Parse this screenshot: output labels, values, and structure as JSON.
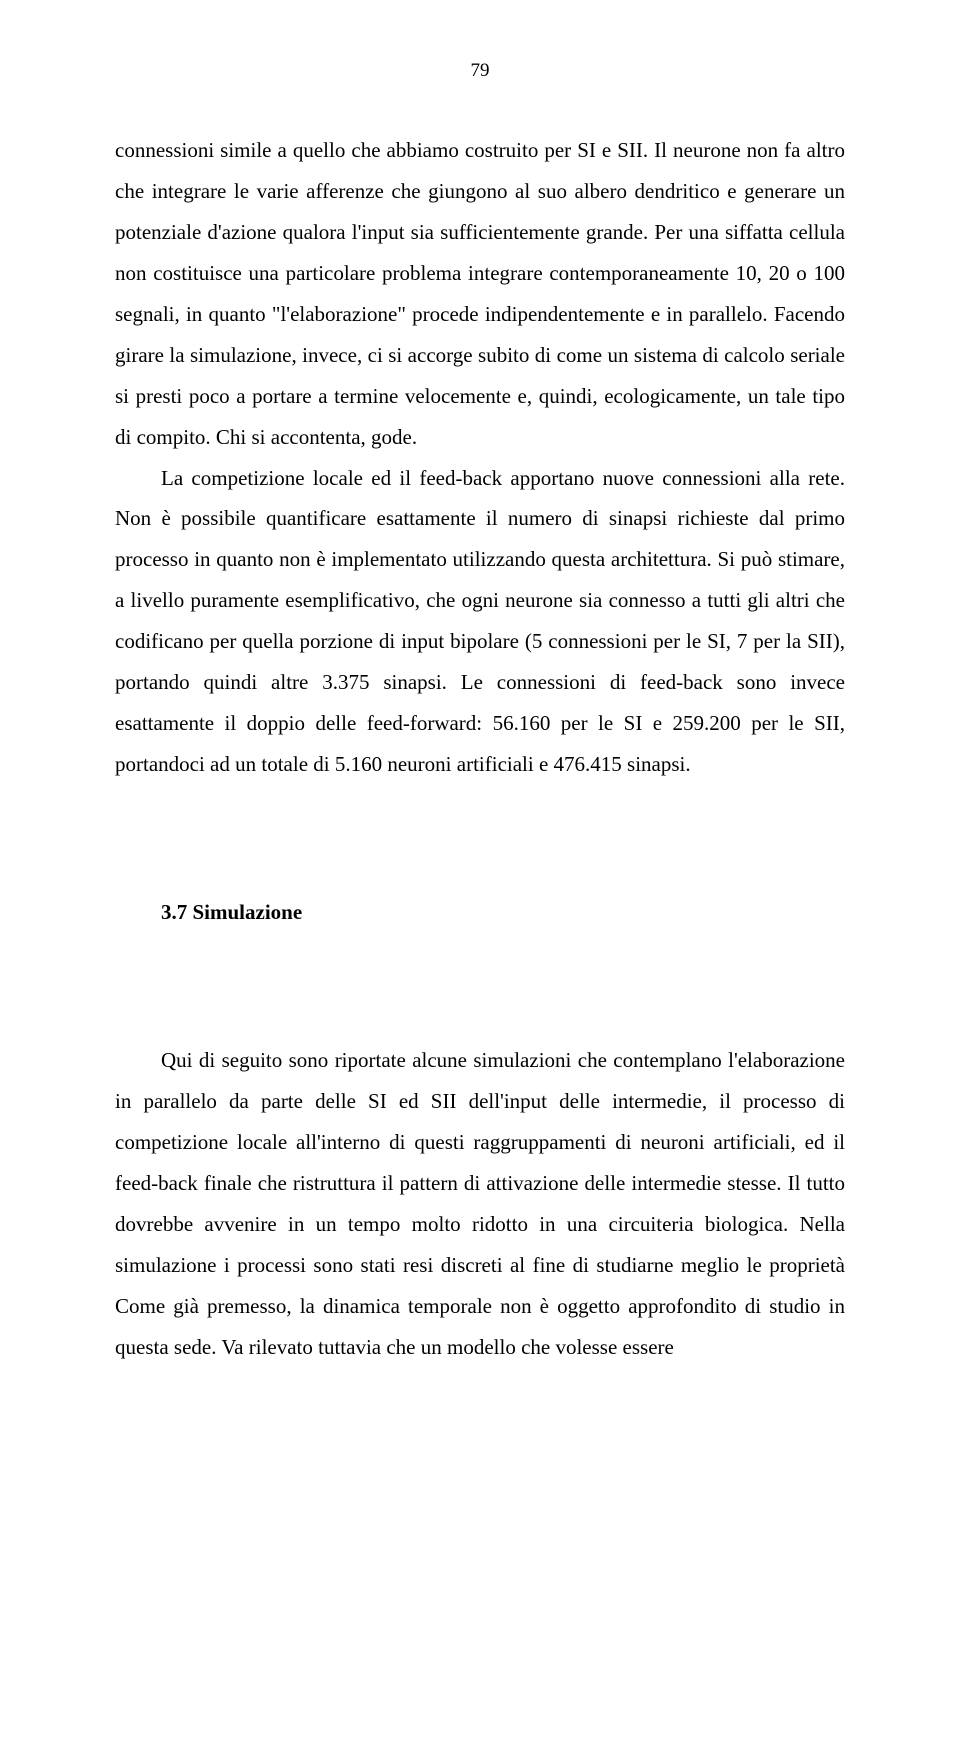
{
  "page_number": "79",
  "paragraphs": {
    "p1": "connessioni simile a quello che abbiamo costruito per SI e SII. Il neurone non fa altro che integrare le varie afferenze che giungono al suo albero dendritico e generare un potenziale d'azione qualora l'input sia sufficientemente grande. Per una siffatta cellula non costituisce una particolare problema integrare contemporaneamente 10, 20 o 100 segnali, in quanto \"l'elaborazione\" procede indipendentemente e in parallelo. Facendo girare la simulazione, invece, ci si accorge subito di come un sistema di calcolo seriale si presti poco a portare a termine velocemente e, quindi, ecologicamente, un tale tipo di compito. Chi si accontenta, gode.",
    "p2": "La competizione locale ed il feed-back apportano nuove connessioni alla rete. Non è possibile quantificare esattamente il numero di sinapsi richieste dal primo processo in quanto non è implementato utilizzando questa architettura. Si può stimare, a livello puramente esemplificativo, che ogni neurone sia connesso a tutti gli altri che codificano per quella porzione di input bipolare (5 connessioni per le SI, 7 per la SII), portando quindi altre 3.375 sinapsi. Le connessioni di feed-back sono invece esattamente il doppio delle feed-forward: 56.160 per le SI e 259.200 per le SII, portandoci ad un totale di 5.160 neuroni artificiali e 476.415 sinapsi.",
    "heading": "3.7 Simulazione",
    "p3": "Qui di seguito sono riportate alcune simulazioni che contemplano l'elaborazione in parallelo da parte delle SI ed SII dell'input delle intermedie, il processo di competizione locale all'interno di questi raggruppamenti di neuroni artificiali, ed il feed-back finale che ristruttura il pattern di attivazione delle intermedie stesse. Il tutto dovrebbe avvenire in un tempo molto ridotto in una circuiteria biologica. Nella simulazione i processi sono stati resi discreti al fine di studiarne meglio le proprietà Come già premesso, la dinamica temporale non è oggetto approfondito di studio in questa sede. Va rilevato tuttavia che un modello che volesse essere"
  }
}
